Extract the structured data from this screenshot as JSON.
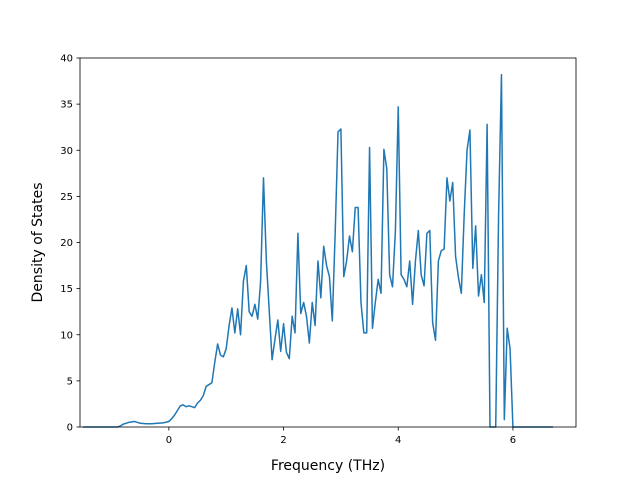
{
  "chart_data": {
    "type": "line",
    "title": "",
    "xlabel": "Frequency (THz)",
    "ylabel": "Density of States",
    "xlim": [
      -1.55,
      7.1
    ],
    "ylim": [
      0,
      40
    ],
    "xticks": [
      0,
      2,
      4,
      6
    ],
    "xtick_labels": [
      "0",
      "2",
      "4",
      "6"
    ],
    "yticks": [
      0,
      5,
      10,
      15,
      20,
      25,
      30,
      35,
      40
    ],
    "ytick_labels": [
      "0",
      "5",
      "10",
      "15",
      "20",
      "25",
      "30",
      "35",
      "40"
    ],
    "grid": false,
    "legend": "none",
    "line_color": "#1f77b4",
    "series": [
      {
        "x": [
          -1.5,
          -1.2,
          -0.9,
          -0.85,
          -0.8,
          -0.7,
          -0.6,
          -0.5,
          -0.4,
          -0.3,
          -0.2,
          -0.1,
          0.0,
          0.05,
          0.1,
          0.15,
          0.2,
          0.25,
          0.3,
          0.35,
          0.4,
          0.45,
          0.5,
          0.55,
          0.6,
          0.65,
          0.7,
          0.75,
          0.8,
          0.85,
          0.9,
          0.95,
          1.0,
          1.05,
          1.1,
          1.15,
          1.2,
          1.25,
          1.3,
          1.35,
          1.4,
          1.45,
          1.5,
          1.55,
          1.6,
          1.65,
          1.7,
          1.8,
          1.85,
          1.9,
          1.95,
          2.0,
          2.05,
          2.1,
          2.15,
          2.2,
          2.25,
          2.3,
          2.35,
          2.4,
          2.45,
          2.5,
          2.55,
          2.6,
          2.65,
          2.7,
          2.75,
          2.8,
          2.85,
          2.9,
          2.95,
          3.0,
          3.05,
          3.1,
          3.15,
          3.2,
          3.25,
          3.3,
          3.35,
          3.4,
          3.45,
          3.5,
          3.55,
          3.6,
          3.65,
          3.7,
          3.75,
          3.8,
          3.85,
          3.9,
          3.95,
          4.0,
          4.05,
          4.1,
          4.15,
          4.2,
          4.25,
          4.3,
          4.35,
          4.4,
          4.45,
          4.5,
          4.55,
          4.6,
          4.65,
          4.7,
          4.75,
          4.8,
          4.85,
          4.9,
          4.95,
          5.0,
          5.05,
          5.1,
          5.15,
          5.2,
          5.25,
          5.3,
          5.35,
          5.4,
          5.45,
          5.5,
          5.55,
          5.6,
          5.65,
          5.7,
          5.75,
          5.8,
          5.85,
          5.9,
          5.95,
          6.0,
          6.05,
          6.1,
          6.3,
          6.7
        ],
        "y": [
          0,
          0,
          0,
          0.1,
          0.3,
          0.5,
          0.6,
          0.4,
          0.35,
          0.35,
          0.4,
          0.45,
          0.6,
          0.9,
          1.3,
          1.8,
          2.3,
          2.4,
          2.2,
          2.3,
          2.2,
          2.1,
          2.6,
          2.9,
          3.4,
          4.4,
          4.6,
          4.8,
          7.0,
          9.0,
          7.8,
          7.6,
          8.5,
          11.0,
          12.9,
          10.2,
          12.8,
          10.0,
          15.8,
          17.5,
          12.5,
          12.0,
          13.3,
          11.7,
          15.8,
          27.0,
          18.0,
          7.3,
          9.5,
          11.6,
          8.2,
          11.2,
          8.1,
          7.4,
          12.0,
          10.2,
          21.0,
          12.3,
          13.5,
          12.0,
          9.1,
          13.5,
          11.0,
          18.0,
          14.0,
          19.6,
          17.5,
          16.3,
          11.5,
          21.0,
          32.0,
          32.3,
          16.3,
          18.0,
          20.7,
          19.0,
          23.8,
          23.8,
          13.5,
          10.2,
          10.2,
          30.3,
          10.7,
          13.5,
          16.0,
          14.5,
          30.1,
          28.0,
          16.5,
          15.2,
          21.2,
          34.7,
          16.5,
          16.0,
          15.2,
          18.0,
          13.3,
          18.0,
          21.3,
          16.5,
          15.3,
          21.0,
          21.3,
          11.3,
          9.4,
          18.0,
          19.1,
          19.3,
          27.0,
          24.5,
          26.5,
          18.5,
          16.2,
          14.5,
          23.0,
          30.0,
          32.2,
          17.2,
          21.8,
          14.2,
          16.5,
          13.5,
          32.8,
          0,
          0,
          0,
          23.0,
          38.2,
          0.8,
          10.7,
          8.5,
          0,
          0,
          0,
          0,
          0
        ]
      }
    ]
  }
}
